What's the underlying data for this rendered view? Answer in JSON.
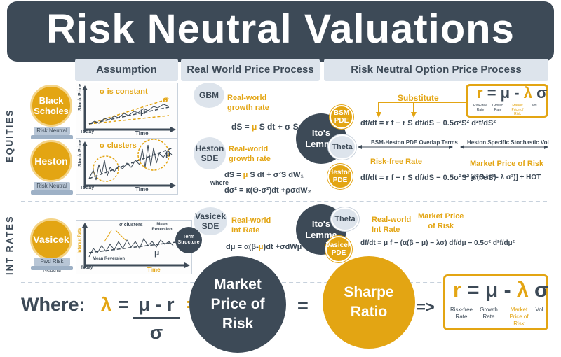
{
  "title": "Risk Neutral Valuations",
  "headers": {
    "assumption": "Assumption",
    "real_world": "Real World Price Process",
    "risk_neutral": "Risk Neutral Option Price Process"
  },
  "side_labels": {
    "equities": "EQUITIES",
    "int_rates": "INT RATES"
  },
  "models": {
    "black_scholes": {
      "name_line1": "Black",
      "name_line2": "Scholes",
      "pedestal": "Risk Neutral",
      "chart": {
        "y_axis": "Stock Price",
        "x_axis": "Time",
        "origin": "Today",
        "note": "σ is constant",
        "sigma": "σ",
        "mu": "μ"
      }
    },
    "heston": {
      "name": "Heston",
      "pedestal": "Risk Neutral",
      "chart": {
        "y_axis": "Stock Price",
        "x_axis": "Time",
        "origin": "Today",
        "note": "σ clusters",
        "mu": "μ"
      }
    },
    "vasicek": {
      "name": "Vasicek",
      "pedestal": "Fwd Risk Neutral",
      "chart": {
        "y_axis": "Interest Rate",
        "x_axis": "Time",
        "origin": "Today",
        "note": "σ clusters",
        "mean_reversion_top": "Mean Reversion",
        "mean_reversion_bottom": "Mean Reversion",
        "mu": "μ",
        "term_structure": "Term Structure"
      }
    }
  },
  "real_world": {
    "gbm": {
      "label": "GBM",
      "note_line1": "Real-world",
      "note_line2": "growth rate",
      "eq_pre": "dS = ",
      "eq_mu": "μ",
      "eq_post": " S dt + σ S dW"
    },
    "heston": {
      "label_line1": "Heston",
      "label_line2": "SDE",
      "note_line1": "Real-world",
      "note_line2": "growth rate",
      "eq1_pre": "dS = ",
      "eq1_mu": "μ",
      "eq1_post": " S dt + σ²S dW₁",
      "where": "where",
      "eq2": "dσ² = κ(Θ-σ²)dt +ρσdW₂"
    },
    "vasicek": {
      "label_line1": "Vasicek",
      "label_line2": "SDE",
      "note_line1": "Real-world",
      "note_line2": "Int Rate",
      "eq_pre": "dμ = α(β-",
      "eq_mu": "μ",
      "eq_post": ")dt +σdWμ"
    }
  },
  "risk_neutral": {
    "substitute": "Substitute",
    "ito_lemma_1": "Ito's Lemma",
    "ito_lemma_2": "Ito's Lemma",
    "bsm_pde": "BSM PDE",
    "heston_pde": "Heston PDE",
    "vasicek_pde": "Vasicek PDE",
    "theta": "Theta",
    "overlap": "BSM-Heston PDE Overlap Terms",
    "specific": "Heston Specific Stochastic Vol",
    "risk_free_rate": "Risk-free Rate",
    "market_price_of_risk": "Market Price of Risk",
    "real_world_int_rate_1": "Real-world",
    "real_world_int_rate_2": "Int Rate",
    "mpr_1": "Market Price",
    "mpr_2": "of Risk",
    "eq_bsm": "df/dt = r f − r S df/dS − 0.5σ²S² d²f/dS²",
    "eq_heston_tail": "− [κ(Θ-σ²)- λ σ²)] + HOT",
    "eq_vasicek": "df/dt = μ f − (α(β − μ) − λσ) df/dμ − 0.5σ² d²f/dμ²",
    "formula_box": {
      "r": "r",
      "eq": "=",
      "mu": "μ",
      "minus": "-",
      "lambda": "λ",
      "sigma": "σ",
      "cap_r": "Risk-free Rate",
      "cap_mu": "Growth Rate",
      "cap_lambda": "Market Price of Risk",
      "cap_sigma": "Vol"
    }
  },
  "bottom": {
    "where": "Where:",
    "lambda": "λ",
    "eq": "=",
    "numerator": "μ - r",
    "denominator": "σ",
    "eq2": "=",
    "mpr_line1": "Market",
    "mpr_line2": "Price of",
    "mpr_line3": "Risk",
    "eq3": "=",
    "sharpe_line1": "Sharpe",
    "sharpe_line2": "Ratio",
    "arrow": "=>",
    "box": {
      "r": "r",
      "eq": "=",
      "mu": "μ",
      "minus": "-",
      "lambda": "λ",
      "sigma": "σ",
      "cap_r": "Risk-free Rate",
      "cap_mu": "Growth Rate",
      "cap_lambda": "Market Price of Risk",
      "cap_sigma": "Vol"
    }
  },
  "colors": {
    "dark": "#3d4a57",
    "gold": "#e3a513",
    "light": "#dde4ec"
  }
}
